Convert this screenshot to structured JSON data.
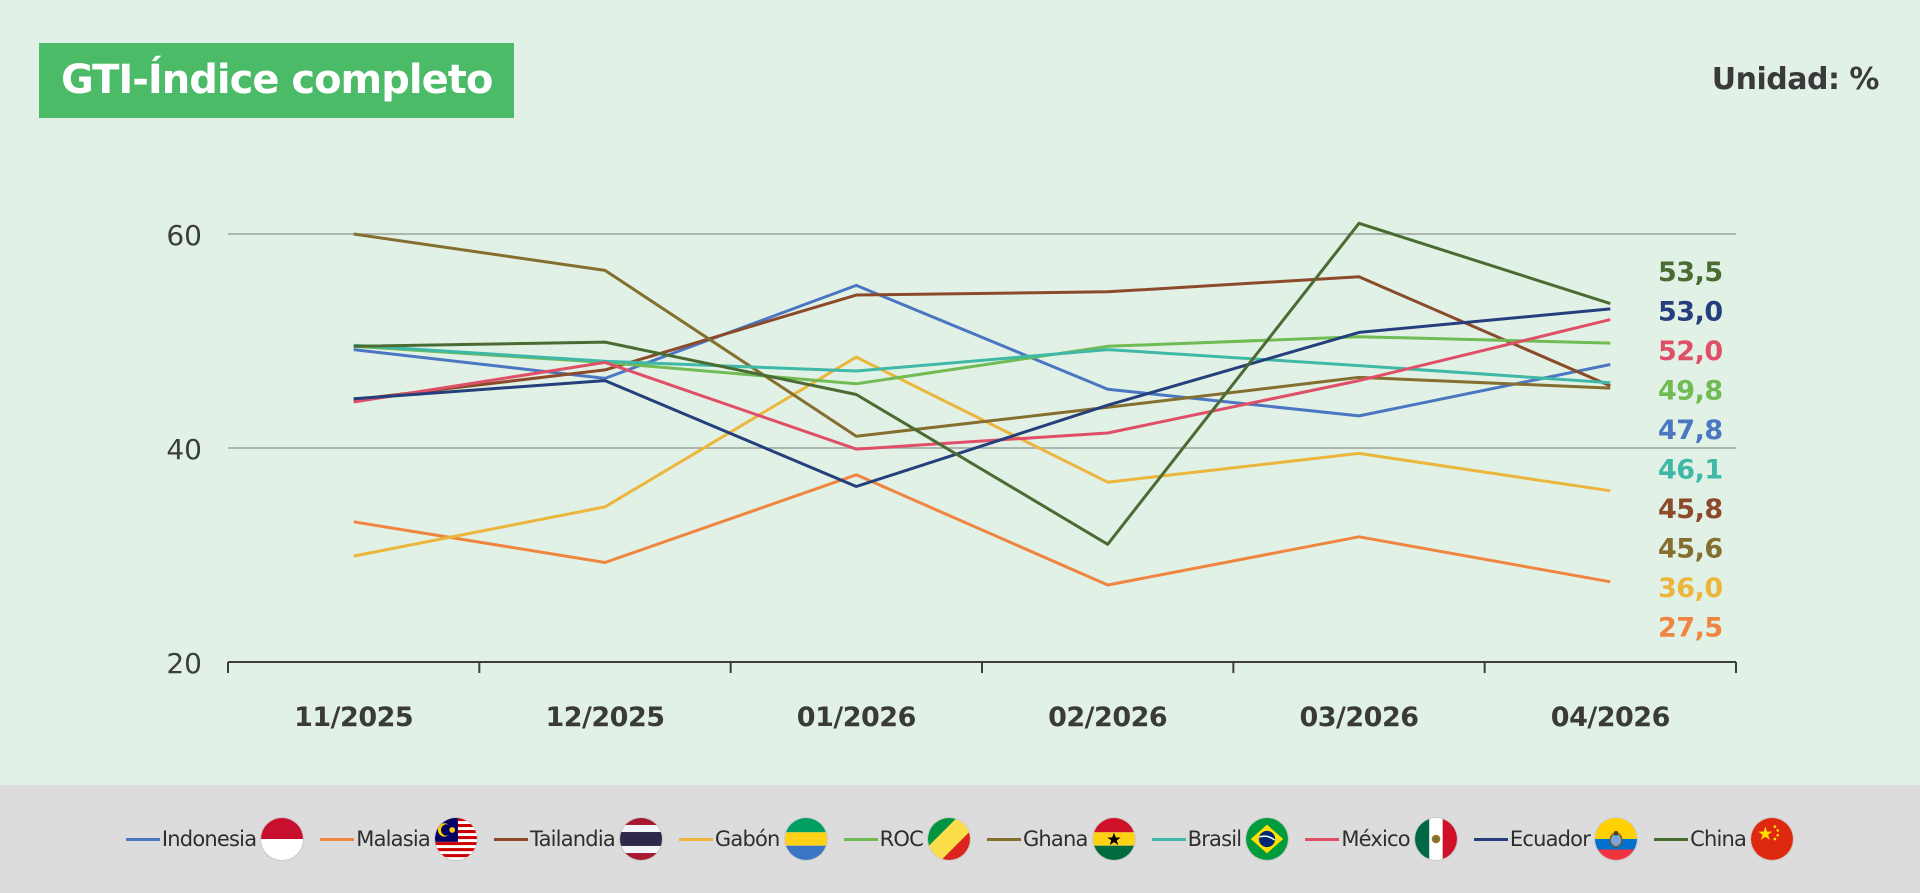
{
  "title": "GTI-Índice completo",
  "unit": "Unidad: %",
  "chart_data": {
    "type": "line",
    "title": "GTI-Índice completo",
    "x": [
      "11/2025",
      "12/2025",
      "01/2026",
      "02/2026",
      "03/2026",
      "04/2026"
    ],
    "ylim": [
      20,
      60
    ],
    "yticks": [
      20,
      40,
      60
    ],
    "grid": true,
    "legend": "bottom",
    "series": [
      {
        "name": "Indonesia",
        "color": "#4a76c2",
        "values": [
          49.2,
          46.5,
          55.2,
          45.5,
          43.0,
          47.8
        ],
        "end_label": "47,8"
      },
      {
        "name": "Malasia",
        "color": "#ef8540",
        "values": [
          33.1,
          29.3,
          37.5,
          27.2,
          31.7,
          27.5
        ],
        "end_label": "27,5"
      },
      {
        "name": "Tailandia",
        "color": "#8b4a29",
        "values": [
          44.5,
          47.3,
          54.3,
          54.6,
          56.0,
          45.8
        ],
        "end_label": "45,8"
      },
      {
        "name": "Gabón",
        "color": "#ecb53b",
        "values": [
          29.9,
          34.5,
          48.5,
          36.8,
          39.5,
          36.0
        ],
        "end_label": "36,0"
      },
      {
        "name": "ROC",
        "color": "#70bb54",
        "values": [
          49.5,
          48.0,
          46.0,
          49.5,
          50.4,
          49.8
        ],
        "end_label": "49,8"
      },
      {
        "name": "Ghana",
        "color": "#846f30",
        "values": [
          60.0,
          56.6,
          41.1,
          43.8,
          46.6,
          45.6
        ],
        "end_label": "45,6"
      },
      {
        "name": "Brasil",
        "color": "#3fb8a8",
        "values": [
          49.6,
          48.1,
          47.2,
          49.2,
          47.7,
          46.1
        ],
        "end_label": "46,1"
      },
      {
        "name": "México",
        "color": "#df4f68",
        "values": [
          44.3,
          48.0,
          39.9,
          41.4,
          46.3,
          52.0
        ],
        "end_label": "52,0"
      },
      {
        "name": "Ecuador",
        "color": "#253f7c",
        "values": [
          44.6,
          46.3,
          36.4,
          44.0,
          50.8,
          53.0
        ],
        "end_label": "53,0"
      },
      {
        "name": "China",
        "color": "#4a6b31",
        "values": [
          49.5,
          49.9,
          45.0,
          31.0,
          61.0,
          53.5
        ],
        "end_label": "53,5"
      }
    ],
    "end_label_order": [
      "China",
      "Ecuador",
      "México",
      "ROC",
      "Indonesia",
      "Brasil",
      "Tailandia",
      "Ghana",
      "Gabón",
      "Malasia"
    ]
  },
  "legend_flags": {
    "Indonesia": "indonesia-flag-icon",
    "Malasia": "malaysia-flag-icon",
    "Tailandia": "thailand-flag-icon",
    "Gabón": "gabon-flag-icon",
    "ROC": "congo-flag-icon",
    "Ghana": "ghana-flag-icon",
    "Brasil": "brazil-flag-icon",
    "México": "mexico-flag-icon",
    "Ecuador": "ecuador-flag-icon",
    "China": "china-flag-icon"
  }
}
